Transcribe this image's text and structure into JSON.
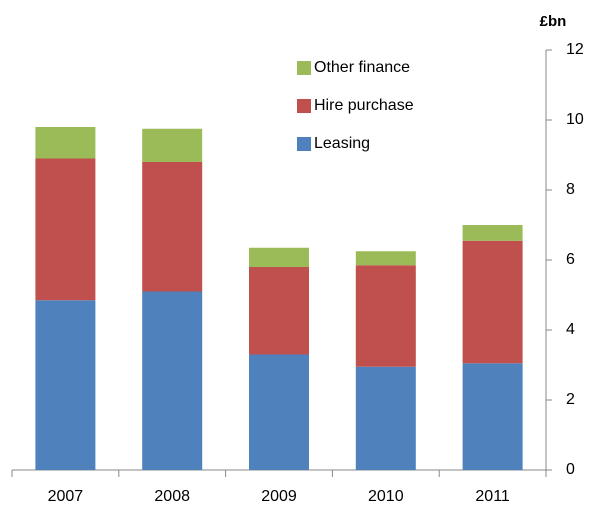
{
  "chart_data": {
    "type": "stacked_bar",
    "y_label": "£bn",
    "categories": [
      "2007",
      "2008",
      "2009",
      "2010",
      "2011"
    ],
    "series": [
      {
        "name": "Leasing",
        "color": "#4f81bd",
        "values": [
          4.85,
          5.1,
          3.3,
          2.95,
          3.05
        ]
      },
      {
        "name": "Hire purchase",
        "color": "#c0504d",
        "values": [
          4.05,
          3.7,
          2.5,
          2.9,
          3.5
        ]
      },
      {
        "name": "Other finance",
        "color": "#9bbb59",
        "values": [
          0.9,
          0.95,
          0.55,
          0.4,
          0.45
        ]
      }
    ],
    "ylim": [
      0,
      12
    ],
    "yticks": [
      0,
      2,
      4,
      6,
      8,
      10,
      12
    ],
    "y_axis_side": "right",
    "legend": "top"
  }
}
